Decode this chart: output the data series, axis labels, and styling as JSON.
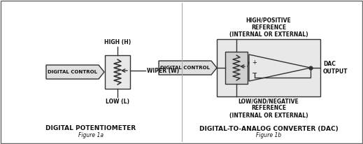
{
  "bg_color": "#ffffff",
  "border_color": "#888888",
  "figsize": [
    5.19,
    2.06
  ],
  "dpi": 100,
  "left_title": "DIGITAL POTENTIOMETER",
  "left_subtitle": "Figure 1a",
  "right_title": "DIGITAL-TO-ANALOG CONVERTER (DAC)",
  "right_subtitle": "Figure 1b",
  "left_dc_label": "DIGITAL CONTROL",
  "right_dc_label": "DIGITAL CONTROL",
  "high_label": "HIGH (H)",
  "low_label": "LOW (L)",
  "wiper_label": "WIPER (W)",
  "dac_output_label": "DAC\nOUTPUT",
  "high_ref_label": "HIGH/POSITIVE\nREFERENCE\n(INTERNAL OR EXTERNAL)",
  "low_ref_label": "LOW/GND/NEGATIVE\nREFERENCE\n(INTERNAL OR EXTERNAL)",
  "label_fs": 5.5,
  "title_fs": 6.5,
  "dc_label_fs": 5.0
}
